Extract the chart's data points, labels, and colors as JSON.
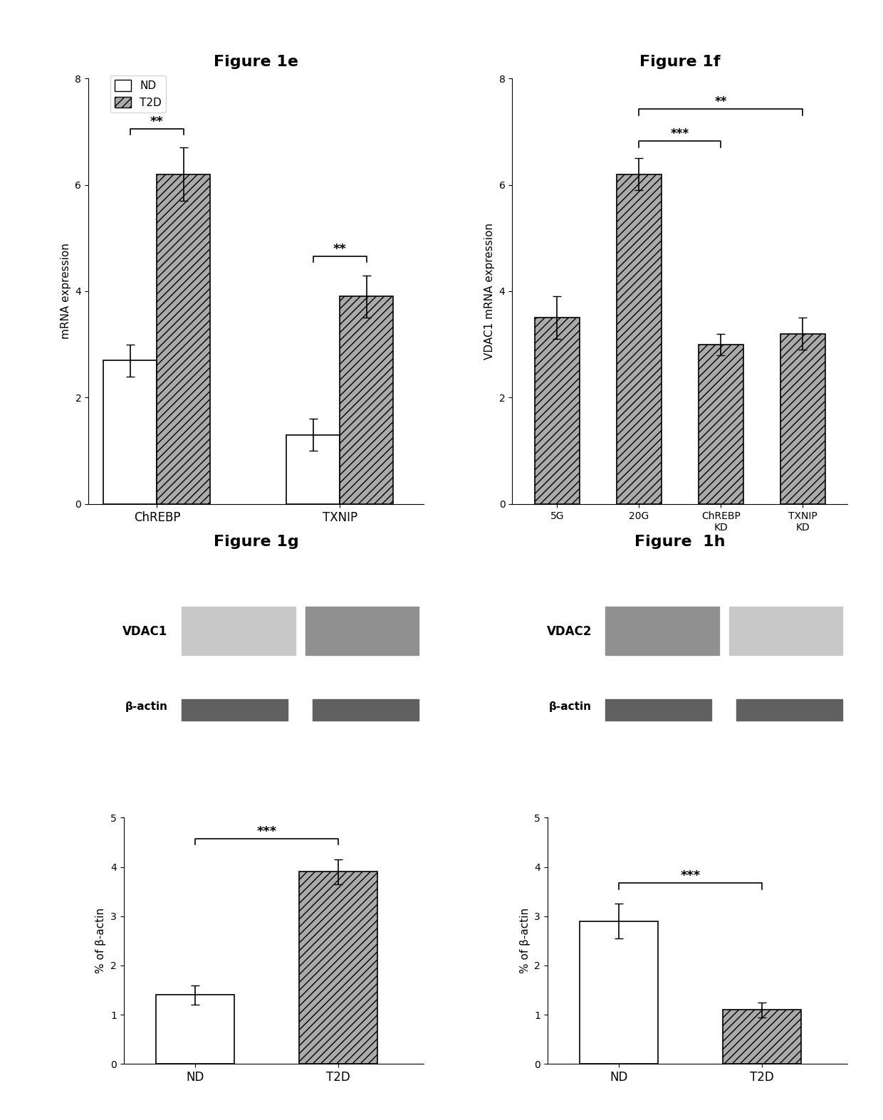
{
  "fig1e": {
    "title": "Figure 1e",
    "ylabel": "mRNA expression",
    "ylim": [
      0,
      8
    ],
    "yticks": [
      0,
      2,
      4,
      6,
      8
    ],
    "groups": [
      "ChREBP",
      "TXNIP"
    ],
    "nd_values": [
      2.7,
      1.3
    ],
    "t2d_values": [
      6.2,
      3.9
    ],
    "nd_err": [
      0.3,
      0.3
    ],
    "t2d_err": [
      0.5,
      0.4
    ],
    "sig_labels": [
      "**",
      "**"
    ],
    "legend_nd": "ND",
    "legend_t2d": "T2D",
    "bar_color_nd": "#ffffff",
    "bar_color_t2d": "#aaaaaa",
    "bar_edgecolor": "#000000"
  },
  "fig1f": {
    "title": "Figure 1f",
    "ylabel": "VDAC1 mRNA expression",
    "ylim": [
      0,
      8
    ],
    "yticks": [
      0,
      2,
      4,
      6,
      8
    ],
    "categories": [
      "5G",
      "20G",
      "ChREBP\nKD",
      "TXNIP\nKD"
    ],
    "values": [
      3.5,
      6.2,
      3.0,
      3.2
    ],
    "errors": [
      0.4,
      0.3,
      0.2,
      0.3
    ],
    "bar_color": "#aaaaaa",
    "bar_edgecolor": "#000000",
    "sig1_label": "***",
    "sig2_label": "**"
  },
  "fig1g": {
    "title": "Figure 1g",
    "ylabel": "% of β-actin",
    "ylim": [
      0,
      5
    ],
    "yticks": [
      0,
      1,
      2,
      3,
      4,
      5
    ],
    "nd_value": 1.4,
    "t2d_value": 3.9,
    "nd_err": 0.2,
    "t2d_err": 0.25,
    "sig_label": "***",
    "bar_color_nd": "#ffffff",
    "bar_color_t2d": "#aaaaaa",
    "bar_edgecolor": "#000000",
    "vdac_label": "VDAC1",
    "actin_label": "β-actin"
  },
  "fig1h": {
    "title": "Figure  1h",
    "ylabel": "% of β-actin",
    "ylim": [
      0,
      5
    ],
    "yticks": [
      0,
      1,
      2,
      3,
      4,
      5
    ],
    "nd_value": 2.9,
    "t2d_value": 1.1,
    "nd_err": 0.35,
    "t2d_err": 0.15,
    "sig_label": "***",
    "bar_color_nd": "#ffffff",
    "bar_color_t2d": "#aaaaaa",
    "bar_edgecolor": "#000000",
    "vdac_label": "VDAC2",
    "actin_label": "β-actin"
  },
  "background_color": "#ffffff",
  "hatch_pattern": "///",
  "title_fontsize": 16,
  "label_fontsize": 11,
  "tick_fontsize": 10
}
